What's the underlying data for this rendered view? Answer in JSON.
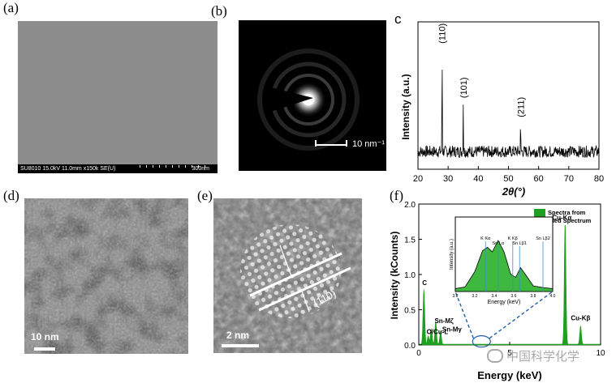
{
  "panels": {
    "a": {
      "label": "(a)",
      "info_bar": "SU8010 15.0kV 11.0mm x150k SE(U)",
      "scale": "300nm"
    },
    "b": {
      "label": "(b)",
      "scale": "10 nm⁻¹"
    },
    "c": {
      "label": "c"
    },
    "d": {
      "label": "(d)",
      "scale": "10 nm"
    },
    "e": {
      "label": "(e)",
      "scale": "2 nm",
      "lattice_label": "(110)"
    },
    "f": {
      "label": "(f)"
    }
  },
  "watermark": "中国科学化学",
  "chart_data": [
    {
      "type": "line",
      "panel": "c",
      "xlabel": "2θ(°)",
      "ylabel": "Intensity (a.u.)",
      "xlim": [
        20,
        80
      ],
      "xticks": [
        20,
        30,
        40,
        50,
        60,
        70,
        80
      ],
      "peaks": [
        {
          "x": 28.0,
          "label": "(110)",
          "height": 0.82
        },
        {
          "x": 35.0,
          "label": "(101)",
          "height": 0.45
        },
        {
          "x": 54.0,
          "label": "(211)",
          "height": 0.32
        }
      ],
      "baseline": 0.12,
      "noise": 0.04,
      "color": "#000000"
    },
    {
      "type": "bar",
      "panel": "f",
      "xlabel": "Energy (keV)",
      "ylabel": "Intensity (kCounts)",
      "xlim": [
        0,
        10
      ],
      "ylim": [
        0,
        2.0
      ],
      "xticks": [
        0,
        5,
        10
      ],
      "yticks": [
        0.0,
        0.5,
        1.0,
        1.5,
        2.0
      ],
      "legend": "Spectra from Summed Spectrum",
      "color": "#1f9e1f",
      "peaks": [
        {
          "x": 0.28,
          "y": 0.78,
          "label": "C"
        },
        {
          "x": 0.52,
          "y": 0.12,
          "label": "O"
        },
        {
          "x": 0.93,
          "y": 0.32,
          "label": "Cu-L"
        },
        {
          "x": 0.69,
          "y": 0.22,
          "label": "Sn-Mζ"
        },
        {
          "x": 1.2,
          "y": 0.18,
          "label": "Sn-Mγ"
        },
        {
          "x": 8.05,
          "y": 1.73,
          "label": "Cu-Kα"
        },
        {
          "x": 8.9,
          "y": 0.26,
          "label": "Cu-Kβ"
        }
      ],
      "labels": [
        "C",
        "Sn-Mζ",
        "Sn-Mγ",
        "O/Cu-L",
        "Cu-Kα",
        "Cu-Kβ"
      ],
      "inset": {
        "xlabel": "Energy (keV)",
        "ylabel": "Intensity (a.u.)",
        "xlim": [
          3.0,
          4.0
        ],
        "xticks": [
          "3.0",
          "3.2",
          "3.4",
          "3.6",
          "3.8",
          "4.0"
        ],
        "lines": [
          {
            "x": 3.31,
            "label": "K Kα"
          },
          {
            "x": 3.44,
            "label": "Sn Lα"
          },
          {
            "x": 3.59,
            "label": "K Kβ"
          },
          {
            "x": 3.66,
            "label": "Sn Lβ1"
          },
          {
            "x": 3.9,
            "label": "Sn Lβ2"
          }
        ],
        "curve": [
          [
            3.0,
            0.05
          ],
          [
            3.1,
            0.08
          ],
          [
            3.2,
            0.35
          ],
          [
            3.28,
            0.72
          ],
          [
            3.33,
            0.78
          ],
          [
            3.38,
            0.7
          ],
          [
            3.44,
            0.9
          ],
          [
            3.5,
            0.7
          ],
          [
            3.57,
            0.3
          ],
          [
            3.62,
            0.25
          ],
          [
            3.67,
            0.42
          ],
          [
            3.72,
            0.3
          ],
          [
            3.8,
            0.1
          ],
          [
            3.9,
            0.07
          ],
          [
            4.0,
            0.05
          ]
        ]
      }
    }
  ]
}
